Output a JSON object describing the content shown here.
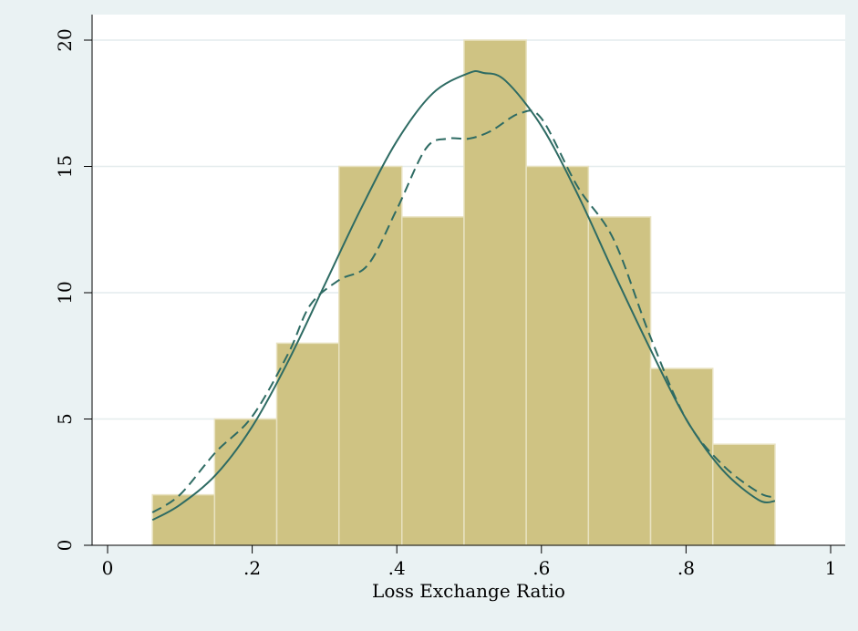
{
  "chart_data": {
    "type": "bar",
    "title": "",
    "xlabel": "Loss Exchange Ratio",
    "ylabel": "",
    "xlim": [
      0,
      1
    ],
    "ylim": [
      0,
      20
    ],
    "xticks": [
      0,
      0.2,
      0.4,
      0.6,
      0.8,
      1
    ],
    "xtick_labels": [
      "0",
      ".2",
      ".4",
      ".6",
      ".8",
      "1"
    ],
    "yticks": [
      0,
      5,
      10,
      15,
      20
    ],
    "ytick_labels": [
      "0",
      "5",
      "10",
      "15",
      "20"
    ],
    "grid": "horizontal",
    "legend": "none",
    "bins": [
      {
        "x0": 0.062,
        "x1": 0.148,
        "value": 2
      },
      {
        "x0": 0.148,
        "x1": 0.234,
        "value": 5
      },
      {
        "x0": 0.234,
        "x1": 0.32,
        "value": 8
      },
      {
        "x0": 0.32,
        "x1": 0.407,
        "value": 15
      },
      {
        "x0": 0.407,
        "x1": 0.493,
        "value": 13
      },
      {
        "x0": 0.493,
        "x1": 0.579,
        "value": 20
      },
      {
        "x0": 0.579,
        "x1": 0.665,
        "value": 15
      },
      {
        "x0": 0.665,
        "x1": 0.751,
        "value": 13
      },
      {
        "x0": 0.751,
        "x1": 0.837,
        "value": 7
      },
      {
        "x0": 0.837,
        "x1": 0.923,
        "value": 4
      }
    ],
    "series": [
      {
        "type": "line",
        "style": "solid",
        "x": [
          0.062,
          0.1,
          0.15,
          0.2,
          0.25,
          0.3,
          0.35,
          0.4,
          0.45,
          0.5,
          0.52,
          0.55,
          0.6,
          0.65,
          0.7,
          0.75,
          0.8,
          0.85,
          0.9,
          0.923
        ],
        "y": [
          1.0,
          1.6,
          2.8,
          4.7,
          7.3,
          10.3,
          13.3,
          16.0,
          17.9,
          18.7,
          18.7,
          18.4,
          16.6,
          13.9,
          10.8,
          7.8,
          5.0,
          3.0,
          1.8,
          1.75
        ]
      },
      {
        "type": "line",
        "style": "dashed",
        "x": [
          0.062,
          0.1,
          0.15,
          0.2,
          0.25,
          0.28,
          0.32,
          0.36,
          0.4,
          0.44,
          0.47,
          0.5,
          0.53,
          0.57,
          0.6,
          0.65,
          0.7,
          0.75,
          0.8,
          0.85,
          0.9,
          0.923
        ],
        "y": [
          1.3,
          2.0,
          3.7,
          5.1,
          7.6,
          9.5,
          10.5,
          11.1,
          13.3,
          15.7,
          16.1,
          16.1,
          16.4,
          17.1,
          16.9,
          14.2,
          12.1,
          8.3,
          5.0,
          3.2,
          2.1,
          1.9
        ]
      }
    ],
    "colors": {
      "background": "#eaf2f3",
      "plot_background": "#ffffff",
      "bar_fill": "#cfc383",
      "bar_edge": "#e8e2c0",
      "line": "#2e6b63",
      "grid": "#e4eced"
    }
  }
}
